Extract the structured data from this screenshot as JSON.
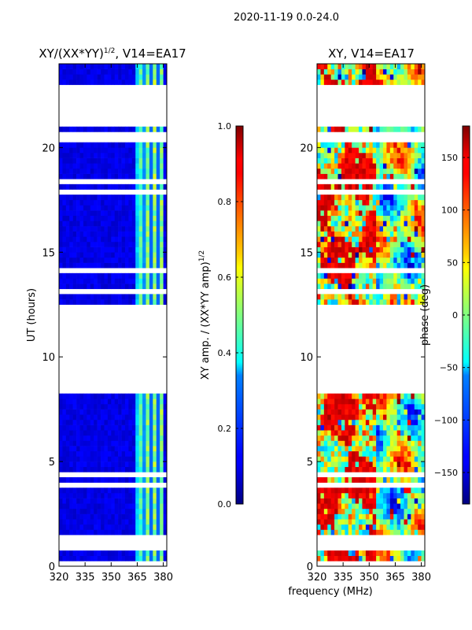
{
  "suptitle": "2020-11-19 0.0-24.0",
  "shared_xlabel": "frequency (MHz)",
  "chart_data": [
    {
      "type": "heatmap",
      "title_main": "XY/(XX*YY)",
      "title_exp": "1/2",
      "title_tail": ", V14=EA17",
      "ylabel": "UT (hours)",
      "xlim": [
        320,
        382
      ],
      "ylim": [
        0,
        24
      ],
      "xticks": [
        "320",
        "335",
        "350",
        "365",
        "380"
      ],
      "xtick_values": [
        320,
        335,
        350,
        365,
        380
      ],
      "yticks": [
        "0",
        "5",
        "10",
        "15",
        "20"
      ],
      "ytick_values": [
        0,
        5,
        10,
        15,
        20
      ],
      "colorscale": "jet",
      "cbar_label_main": "XY amp. / (XX*YY amp)",
      "cbar_label_exp": "1/2",
      "cbar_range": [
        0,
        1
      ],
      "cbar_ticks": [
        "0.0",
        "0.2",
        "0.4",
        "0.6",
        "0.8",
        "1.0"
      ],
      "cbar_tick_values": [
        0,
        0.2,
        0.4,
        0.6,
        0.8,
        1.0
      ],
      "data_gaps_hours": [
        [
          8.2,
          12.4
        ],
        [
          21.4,
          23.0
        ]
      ]
    },
    {
      "type": "heatmap",
      "title": "XY, V14=EA17",
      "xlim": [
        320,
        382
      ],
      "ylim": [
        0,
        24
      ],
      "xticks": [
        "320",
        "335",
        "350",
        "365",
        "380"
      ],
      "xtick_values": [
        320,
        335,
        350,
        365,
        380
      ],
      "yticks": [
        "0",
        "5",
        "10",
        "15",
        "20"
      ],
      "ytick_values": [
        0,
        5,
        10,
        15,
        20
      ],
      "colorscale": "jet",
      "cbar_label": "phase (deg)",
      "cbar_range": [
        -180,
        180
      ],
      "cbar_ticks": [
        "−150",
        "−100",
        "−50",
        "0",
        "50",
        "100",
        "150"
      ],
      "cbar_tick_values": [
        -150,
        -100,
        -50,
        0,
        50,
        100,
        150
      ],
      "data_gaps_hours": [
        [
          8.2,
          12.4
        ],
        [
          21.4,
          23.0
        ]
      ]
    }
  ]
}
